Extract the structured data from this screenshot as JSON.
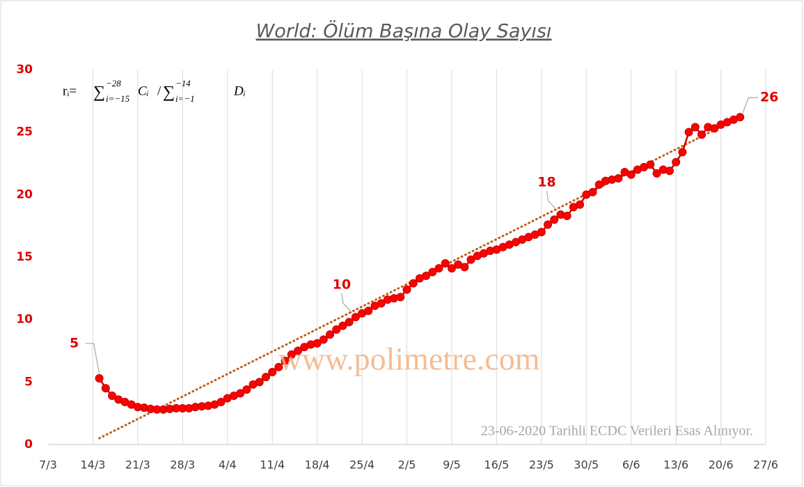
{
  "chart_data": {
    "type": "line",
    "title": "World: Ölüm Başına Olay Sayısı",
    "formula": {
      "lhs": "rᵢ=",
      "sum_sign": "∑",
      "sum1_sup": "−28",
      "sum1_sub": "i=−15",
      "term1": "Cᵢ",
      "sep": "/",
      "sum2_sup": "−14",
      "sum2_sub": "i=−1",
      "term2": "Dᵢ"
    },
    "watermark": "www.polimetre.com",
    "note": "23-06-2020 Tarihli ECDC Verileri Esas Alınıyor.",
    "xlim": [
      "7/3",
      "27/6"
    ],
    "xticks": [
      "7/3",
      "14/3",
      "21/3",
      "28/3",
      "4/4",
      "11/4",
      "18/4",
      "25/4",
      "2/5",
      "9/5",
      "16/5",
      "23/5",
      "30/5",
      "6/6",
      "13/6",
      "20/6",
      "27/6"
    ],
    "ylim": [
      0,
      30
    ],
    "yticks": [
      0,
      5,
      10,
      15,
      20,
      25,
      30
    ],
    "grid": "x",
    "series": [
      {
        "color": "#ff0000",
        "x": [
          "15/3",
          "16/3",
          "17/3",
          "18/3",
          "19/3",
          "20/3",
          "21/3",
          "22/3",
          "23/3",
          "24/3",
          "25/3",
          "26/3",
          "27/3",
          "28/3",
          "29/3",
          "30/3",
          "31/3",
          "1/4",
          "2/4",
          "3/4",
          "4/4",
          "5/4",
          "6/4",
          "7/4",
          "8/4",
          "9/4",
          "10/4",
          "11/4",
          "12/4",
          "13/4",
          "14/4",
          "15/4",
          "16/4",
          "17/4",
          "18/4",
          "19/4",
          "20/4",
          "21/4",
          "22/4",
          "23/4",
          "24/4",
          "25/4",
          "26/4",
          "27/4",
          "28/4",
          "29/4",
          "30/4",
          "1/5",
          "2/5",
          "3/5",
          "4/5",
          "5/5",
          "6/5",
          "7/5",
          "8/5",
          "9/5",
          "10/5",
          "11/5",
          "12/5",
          "13/5",
          "14/5",
          "15/5",
          "16/5",
          "17/5",
          "18/5",
          "19/5",
          "20/5",
          "21/5",
          "22/5",
          "23/5",
          "24/5",
          "25/5",
          "26/5",
          "27/5",
          "28/5",
          "29/5",
          "30/5",
          "31/5",
          "1/6",
          "2/6",
          "3/6",
          "4/6",
          "5/6",
          "6/6",
          "7/6",
          "8/6",
          "9/6",
          "10/6",
          "11/6",
          "12/6",
          "13/6",
          "14/6",
          "15/6",
          "16/6",
          "17/6",
          "18/6",
          "19/6",
          "20/6",
          "21/6",
          "22/6",
          "23/6"
        ],
        "values": [
          5.3,
          4.5,
          3.9,
          3.6,
          3.4,
          3.2,
          3.0,
          2.95,
          2.85,
          2.8,
          2.8,
          2.85,
          2.9,
          2.9,
          2.9,
          3.0,
          3.05,
          3.1,
          3.2,
          3.4,
          3.7,
          3.9,
          4.1,
          4.4,
          4.8,
          5.0,
          5.4,
          5.8,
          6.2,
          6.7,
          7.2,
          7.5,
          7.8,
          8.0,
          8.1,
          8.4,
          8.8,
          9.2,
          9.5,
          9.8,
          10.2,
          10.5,
          10.7,
          11.1,
          11.3,
          11.6,
          11.7,
          11.8,
          12.4,
          12.9,
          13.3,
          13.5,
          13.8,
          14.1,
          14.5,
          14.1,
          14.4,
          14.2,
          14.8,
          15.1,
          15.3,
          15.5,
          15.6,
          15.8,
          16.0,
          16.2,
          16.4,
          16.6,
          16.8,
          17.0,
          17.6,
          18.0,
          18.4,
          18.3,
          19.0,
          19.2,
          20.0,
          20.2,
          20.8,
          21.1,
          21.2,
          21.3,
          21.8,
          21.6,
          22.0,
          22.2,
          22.4,
          21.7,
          22.0,
          21.9,
          22.6,
          23.4,
          25.0,
          25.4,
          24.8,
          25.4,
          25.3,
          25.6,
          25.8,
          26.0,
          26.2
        ],
        "value_labels": [
          "5",
          null,
          null,
          null,
          null,
          null,
          null,
          null,
          null,
          null,
          null,
          null,
          null,
          null,
          null,
          null,
          null,
          null,
          null,
          null,
          null,
          null,
          null,
          null,
          null,
          null,
          null,
          null,
          null,
          null,
          null,
          null,
          null,
          null,
          null,
          null,
          null,
          null,
          null,
          null,
          "10",
          null,
          null,
          null,
          null,
          null,
          null,
          null,
          null,
          null,
          null,
          null,
          null,
          null,
          null,
          null,
          null,
          null,
          null,
          null,
          null,
          null,
          null,
          null,
          null,
          null,
          null,
          null,
          null,
          null,
          null,
          null,
          "18",
          null,
          null,
          null,
          null,
          null,
          null,
          null,
          null,
          null,
          null,
          null,
          null,
          null,
          null,
          null,
          null,
          null,
          null,
          null,
          null,
          null,
          null,
          null,
          null,
          null,
          null,
          null,
          "26"
        ]
      }
    ],
    "trendline": {
      "x": [
        "15/3",
        "23/6"
      ],
      "values": [
        0.5,
        26.2
      ],
      "color": "#c55a11"
    }
  }
}
